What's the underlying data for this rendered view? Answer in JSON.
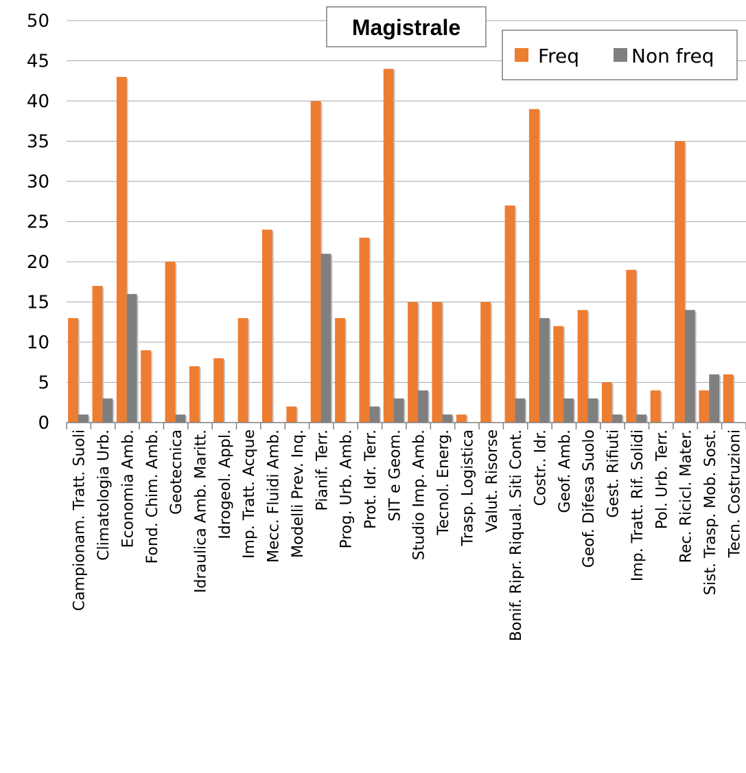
{
  "chart_data": {
    "type": "bar",
    "title": "Magistrale",
    "xlabel": "",
    "ylabel": "",
    "ylim": [
      0,
      50
    ],
    "yticks": [
      0,
      5,
      10,
      15,
      20,
      25,
      30,
      35,
      40,
      45,
      50
    ],
    "grid": true,
    "legend_position": "top-right",
    "categories": [
      "Campionam. Tratt. Suoli",
      "Climatologia Urb.",
      "Economia Amb.",
      "Fond. Chim. Amb.",
      "Geotecnica",
      "Idraulica Amb. Maritt.",
      "Idrogeol. Appl.",
      "Imp. Tratt. Acque",
      "Mecc. Fluidi Amb.",
      "Modelli Prev. Inq.",
      "Pianif. Terr.",
      "Prog. Urb. Amb.",
      "Prot. Idr. Terr.",
      "SIT e Geom.",
      "Studio Imp. Amb.",
      "Tecnol. Energ.",
      "Trasp. Logistica",
      "Valut. Risorse",
      "Bonif. Ripr. Riqual. Siti Cont.",
      "Costr.. Idr.",
      "Geof. Amb.",
      "Geof. Difesa Suolo",
      "Gest. Rifiuti",
      "Imp. Tratt. Rif. Solidi",
      "Pol. Urb. Terr.",
      "Rec. Ricicl. Mater.",
      "Sist. Trasp. Mob. Sost.",
      "Tecn. Costruzioni"
    ],
    "series": [
      {
        "name": "Freq",
        "color": "#ED7D31",
        "values": [
          13,
          17,
          43,
          9,
          20,
          7,
          8,
          13,
          24,
          2,
          40,
          13,
          23,
          44,
          15,
          15,
          1,
          15,
          27,
          39,
          12,
          14,
          5,
          19,
          4,
          35,
          4,
          6
        ]
      },
      {
        "name": "Non freq",
        "color": "#7F7F7F",
        "values": [
          1,
          3,
          16,
          0,
          1,
          0,
          0,
          0,
          0,
          0,
          21,
          0,
          2,
          3,
          4,
          1,
          0,
          0,
          3,
          13,
          3,
          3,
          1,
          1,
          0,
          14,
          6,
          0
        ]
      }
    ]
  }
}
